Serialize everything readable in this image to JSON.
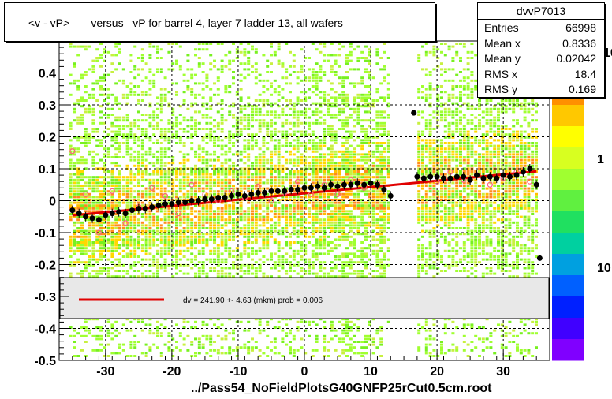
{
  "chart_data": {
    "type": "scatter",
    "title": "<v - vP>       versus   vP for barrel 4, layer 7 ladder 13, all wafers",
    "xlim": [
      -37,
      37
    ],
    "ylim": [
      -0.5,
      0.5
    ],
    "x_ticks": [
      "-30",
      "-20",
      "-10",
      "0",
      "10",
      "20",
      "30"
    ],
    "x_tick_values": [
      -30,
      -20,
      -10,
      0,
      10,
      20,
      30
    ],
    "y_ticks": [
      "-0.5",
      "-0.4",
      "-0.3",
      "-0.2",
      "-0.1",
      "0",
      "0.1",
      "0.2",
      "0.3",
      "0.4"
    ],
    "y_tick_values": [
      -0.5,
      -0.4,
      -0.3,
      -0.2,
      -0.1,
      0,
      0.1,
      0.2,
      0.3,
      0.4
    ],
    "color_scale_labels": [
      "10",
      "1",
      "10"
    ],
    "grid": true,
    "fit_line": {
      "x": [
        -35,
        35
      ],
      "y": [
        -0.046,
        0.092
      ]
    },
    "fit_legend": "dv =  241.90 +-  4.63 (mkm) prob = 0.006",
    "profile_series": {
      "x": [
        -35,
        -34,
        -33,
        -32,
        -31,
        -30,
        -29,
        -28,
        -27,
        -26,
        -25,
        -24,
        -23,
        -22,
        -21,
        -20,
        -19,
        -18,
        -17,
        -16,
        -15,
        -14,
        -13,
        -12,
        -11,
        -10,
        -9,
        -8,
        -7,
        -6,
        -5,
        -4,
        -3,
        -2,
        -1,
        0,
        1,
        2,
        3,
        4,
        5,
        6,
        7,
        8,
        9,
        10,
        11,
        12,
        13,
        17,
        18,
        19,
        20,
        21,
        22,
        23,
        24,
        25,
        26,
        27,
        28,
        29,
        30,
        31,
        32,
        33,
        34,
        35
      ],
      "y": [
        -0.03,
        -0.04,
        -0.05,
        -0.055,
        -0.06,
        -0.045,
        -0.04,
        -0.035,
        -0.04,
        -0.03,
        -0.025,
        -0.025,
        -0.02,
        -0.015,
        -0.01,
        -0.01,
        -0.005,
        -0.005,
        0.0,
        0.0,
        0.005,
        0.005,
        0.01,
        0.01,
        0.015,
        0.02,
        0.015,
        0.02,
        0.025,
        0.025,
        0.03,
        0.03,
        0.03,
        0.035,
        0.035,
        0.04,
        0.04,
        0.045,
        0.04,
        0.05,
        0.045,
        0.05,
        0.05,
        0.055,
        0.05,
        0.055,
        0.05,
        0.035,
        0.015,
        0.075,
        0.07,
        0.075,
        0.075,
        0.07,
        0.07,
        0.075,
        0.075,
        0.065,
        0.08,
        0.07,
        0.075,
        0.07,
        0.08,
        0.075,
        0.08,
        0.09,
        0.1,
        0.05
      ],
      "outliers": [
        [
          16.5,
          0.275
        ],
        [
          35.5,
          -0.18
        ]
      ]
    },
    "open_markers": {
      "x": [
        -35,
        -33,
        -31,
        -29,
        -27,
        -25,
        -23,
        -21,
        -19,
        -17,
        -15,
        -13,
        -11,
        -9,
        -7,
        -5,
        -3,
        -1,
        1,
        3,
        5,
        7,
        9,
        11,
        18,
        20,
        22,
        24,
        26,
        28,
        30,
        32,
        34
      ],
      "y": [
        0.155,
        0.02,
        -0.1,
        0.03,
        -0.07,
        -0.02,
        0.04,
        0.015,
        -0.04,
        0.05,
        0.02,
        0.0,
        0.03,
        0.01,
        0.045,
        0.0,
        0.025,
        0.06,
        0.02,
        0.05,
        0.02,
        0.065,
        0.04,
        0.055,
        0.07,
        0.06,
        0.09,
        0.065,
        0.08,
        0.05,
        0.07,
        0.09,
        0.06
      ]
    },
    "empty_x_ranges": [
      [
        13,
        17
      ]
    ]
  },
  "stats_box": {
    "title": "dvvP7013",
    "rows": [
      {
        "label": "Entries",
        "value": "66998"
      },
      {
        "label": "Mean x",
        "value": "0.8336"
      },
      {
        "label": "Mean y",
        "value": "0.02042"
      },
      {
        "label": "RMS x",
        "value": "18.4"
      },
      {
        "label": "RMS y",
        "value": "0.169"
      }
    ]
  },
  "colors": {
    "fit": "#e00000",
    "marker": "#000000",
    "open_marker": "#ff6080"
  },
  "footer": "../Pass54_NoFieldPlotsG40GNFP25rCut0.5cm.root"
}
